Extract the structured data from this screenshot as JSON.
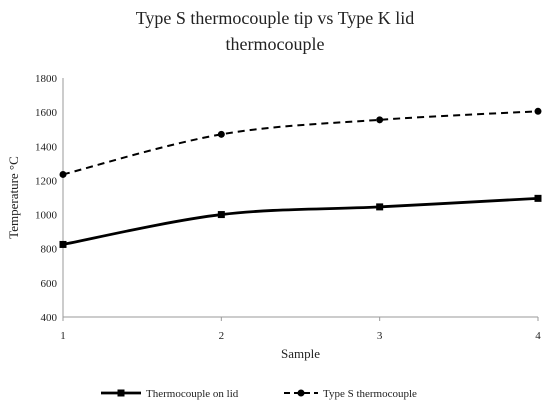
{
  "chart_data": {
    "type": "line",
    "title": "Type S thermocouple tip vs Type K lid thermocouple",
    "title_lines": [
      "Type S thermocouple tip vs Type K lid",
      "thermocouple"
    ],
    "xlabel": "Sample",
    "ylabel": "Temperature °C",
    "x": [
      1,
      2,
      3,
      4
    ],
    "xlim": [
      1,
      4
    ],
    "ylim": [
      400,
      1800
    ],
    "yticks": [
      400,
      600,
      800,
      1000,
      1200,
      1400,
      1600,
      1800
    ],
    "grid": false,
    "legend_position": "bottom",
    "series": [
      {
        "name": "Thermocouple on lid",
        "values": [
          825,
          1000,
          1045,
          1095
        ],
        "marker": "square",
        "line_style": "solid",
        "color": "#000000"
      },
      {
        "name": "Type S thermocouple",
        "values": [
          1235,
          1470,
          1555,
          1605
        ],
        "marker": "circle",
        "line_style": "dashed",
        "color": "#000000"
      }
    ]
  }
}
